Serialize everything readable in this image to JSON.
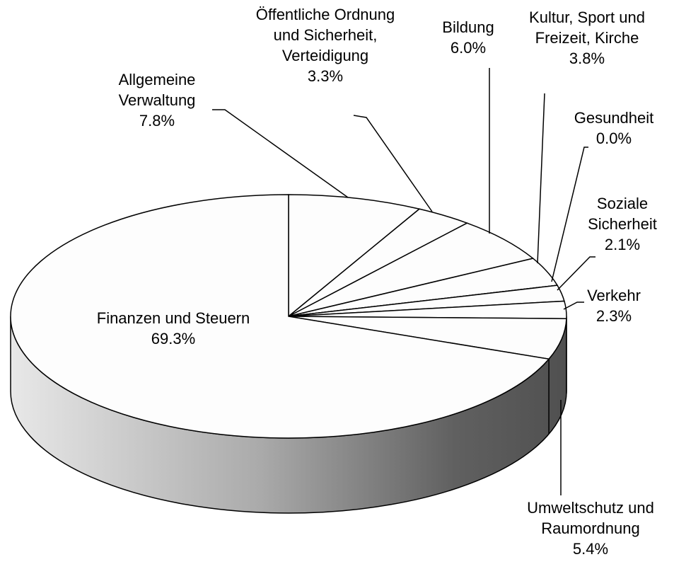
{
  "chart_data": {
    "type": "pie3d",
    "categories": [
      "Allgemeine Verwaltung",
      "Öffentliche Ordnung und Sicherheit, Verteidigung",
      "Bildung",
      "Kultur, Sport und Freizeit, Kirche",
      "Gesundheit",
      "Soziale Sicherheit",
      "Verkehr",
      "Umweltschutz und Raumordnung",
      "Finanzen und Steuern"
    ],
    "values": [
      7.8,
      3.3,
      6.0,
      3.8,
      0.0,
      2.1,
      2.3,
      5.4,
      69.3
    ],
    "value_labels": [
      "7.8%",
      "3.3%",
      "6.0%",
      "3.8%",
      "0.0%",
      "2.1%",
      "2.3%",
      "5.4%",
      "69.3%"
    ],
    "color": "#fdfdfd"
  }
}
